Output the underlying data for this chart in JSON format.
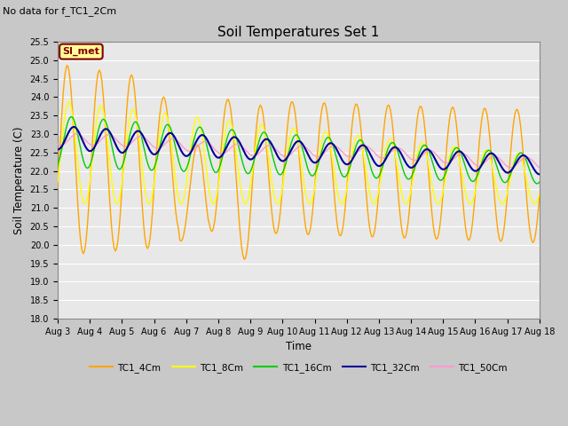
{
  "title": "Soil Temperatures Set 1",
  "subtitle": "No data for f_TC1_2Cm",
  "xlabel": "Time",
  "ylabel": "Soil Temperature (C)",
  "ylim": [
    18.0,
    25.5
  ],
  "yticks": [
    18.0,
    18.5,
    19.0,
    19.5,
    20.0,
    20.5,
    21.0,
    21.5,
    22.0,
    22.5,
    23.0,
    23.5,
    24.0,
    24.5,
    25.0,
    25.5
  ],
  "xtick_labels": [
    "Aug 3",
    "Aug 4",
    "Aug 5",
    "Aug 6",
    "Aug 7",
    "Aug 8",
    "Aug 9",
    "Aug 10",
    "Aug 11",
    "Aug 12",
    "Aug 13",
    "Aug 14",
    "Aug 15",
    "Aug 16",
    "Aug 17",
    "Aug 18"
  ],
  "fig_bg_color": "#c8c8c8",
  "plot_bg_color": "#e8e8e8",
  "grid_color": "#ffffff",
  "series_colors": {
    "TC1_4Cm": "#FFA500",
    "TC1_8Cm": "#FFFF00",
    "TC1_16Cm": "#00CC00",
    "TC1_32Cm": "#000099",
    "TC1_50Cm": "#FF99CC"
  },
  "legend_label": "SI_met",
  "legend_box_facecolor": "#FFFF99",
  "legend_box_edgecolor": "#800000"
}
